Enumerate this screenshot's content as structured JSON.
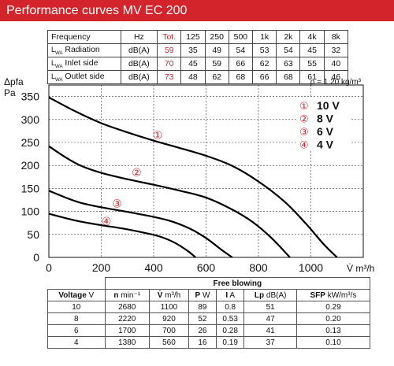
{
  "header": {
    "title": "Performance curves MV EC 200"
  },
  "sound_table": {
    "columns": [
      "Frequency",
      "Hz",
      "Tot.",
      "125",
      "250",
      "500",
      "1k",
      "2k",
      "4k",
      "8k"
    ],
    "rows": [
      {
        "label": "Radiation",
        "unit": "dB(A)",
        "tot": "59",
        "bands": [
          "35",
          "49",
          "54",
          "53",
          "54",
          "45",
          "32"
        ]
      },
      {
        "label": "Inlet side",
        "unit": "dB(A)",
        "tot": "70",
        "bands": [
          "45",
          "59",
          "66",
          "62",
          "63",
          "55",
          "40"
        ]
      },
      {
        "label": "Outlet side",
        "unit": "dB(A)",
        "tot": "73",
        "bands": [
          "48",
          "62",
          "68",
          "66",
          "68",
          "61",
          "46"
        ]
      }
    ],
    "lwa_label": "L",
    "lwa_sub": "WA"
  },
  "chart_data": {
    "type": "line",
    "density_note": "ρ = 1.20 kg/m³",
    "ylabel_top": "Δpfa",
    "ylabel_unit": "Pa",
    "xlabel": "V̇ m³/h",
    "xlim": [
      0,
      1200
    ],
    "ylim": [
      0,
      375
    ],
    "x_ticks": [
      0,
      200,
      400,
      600,
      800,
      1000
    ],
    "y_ticks": [
      0,
      50,
      100,
      150,
      200,
      250,
      300,
      350
    ],
    "grid": true,
    "series": [
      {
        "name": "10 V",
        "marker": "①",
        "points": [
          [
            0,
            348
          ],
          [
            100,
            318
          ],
          [
            200,
            292
          ],
          [
            300,
            272
          ],
          [
            400,
            254
          ],
          [
            500,
            238
          ],
          [
            600,
            221
          ],
          [
            700,
            199
          ],
          [
            800,
            165
          ],
          [
            900,
            121
          ],
          [
            980,
            74
          ],
          [
            1050,
            28
          ],
          [
            1100,
            0
          ]
        ]
      },
      {
        "name": "8 V",
        "marker": "②",
        "points": [
          [
            0,
            242
          ],
          [
            60,
            219
          ],
          [
            120,
            200
          ],
          [
            200,
            184
          ],
          [
            300,
            170
          ],
          [
            400,
            158
          ],
          [
            500,
            145
          ],
          [
            600,
            130
          ],
          [
            700,
            104
          ],
          [
            780,
            76
          ],
          [
            850,
            42
          ],
          [
            920,
            0
          ]
        ]
      },
      {
        "name": "6 V",
        "marker": "③",
        "points": [
          [
            0,
            145
          ],
          [
            60,
            131
          ],
          [
            120,
            119
          ],
          [
            200,
            109
          ],
          [
            300,
            99
          ],
          [
            400,
            88
          ],
          [
            470,
            78
          ],
          [
            540,
            62
          ],
          [
            600,
            42
          ],
          [
            660,
            16
          ],
          [
            700,
            0
          ]
        ]
      },
      {
        "name": "4 V",
        "marker": "④",
        "points": [
          [
            0,
            95
          ],
          [
            60,
            86
          ],
          [
            120,
            78
          ],
          [
            200,
            70
          ],
          [
            280,
            63
          ],
          [
            360,
            54
          ],
          [
            420,
            46
          ],
          [
            480,
            32
          ],
          [
            530,
            14
          ],
          [
            560,
            0
          ]
        ]
      }
    ],
    "curve_markers": [
      {
        "label": "①",
        "x": 415,
        "y": 266
      },
      {
        "label": "②",
        "x": 335,
        "y": 185
      },
      {
        "label": "③",
        "x": 260,
        "y": 117
      },
      {
        "label": "④",
        "x": 220,
        "y": 79
      }
    ]
  },
  "blowing_table": {
    "title": "Free blowing",
    "headers": [
      {
        "sym": "Voltage",
        "unit": "V"
      },
      {
        "sym": "n",
        "unit": "min⁻¹"
      },
      {
        "sym": "V̇",
        "unit": "m³/h"
      },
      {
        "sym": "P",
        "unit": "W"
      },
      {
        "sym": "I",
        "unit": "A"
      },
      {
        "sym": "Lp",
        "unit": "dB(A)"
      },
      {
        "sym": "SFP",
        "unit": "kW/m³/s"
      }
    ],
    "rows": [
      [
        "10",
        "2680",
        "1100",
        "89",
        "0.8",
        "51",
        "0.29"
      ],
      [
        "8",
        "2220",
        "920",
        "52",
        "0.53",
        "47",
        "0.20"
      ],
      [
        "6",
        "1700",
        "700",
        "26",
        "0.28",
        "41",
        "0.13"
      ],
      [
        "4",
        "1380",
        "560",
        "16",
        "0.19",
        "37",
        "0.10"
      ]
    ]
  },
  "colors": {
    "header_bg": "#d4242b",
    "accent_red": "#d4242b",
    "curve": "#000000",
    "grid": "#222222"
  }
}
